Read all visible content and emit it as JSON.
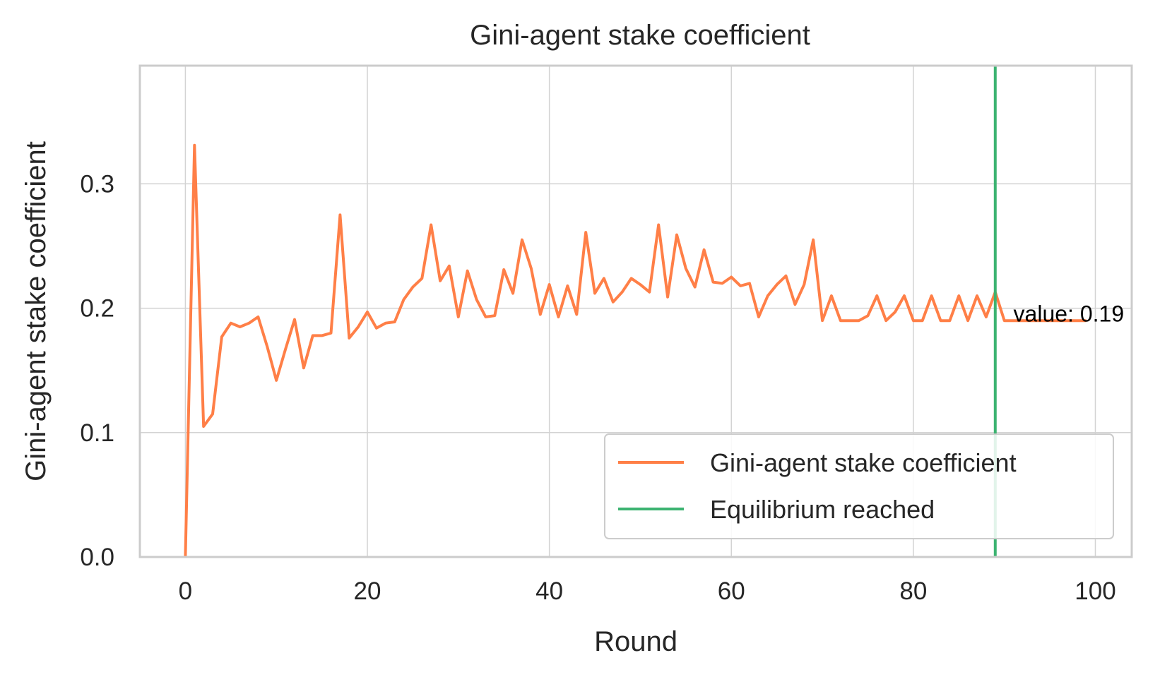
{
  "chart_data": {
    "type": "line",
    "title": "Gini-agent stake coefficient",
    "xlabel": "Round",
    "ylabel": "Gini-agent stake coefficient",
    "xlim": [
      -5,
      104
    ],
    "ylim": [
      0,
      0.395
    ],
    "xticks": [
      0,
      20,
      40,
      60,
      80,
      100
    ],
    "xtick_labels": [
      "0",
      "20",
      "40",
      "60",
      "80",
      "100"
    ],
    "yticks": [
      0.0,
      0.1,
      0.2,
      0.3
    ],
    "ytick_labels": [
      "0.0",
      "0.1",
      "0.2",
      "0.3"
    ],
    "grid": true,
    "legend_position": "lower right",
    "series": [
      {
        "name": "Gini-agent stake coefficient",
        "color": "#ff7f47",
        "x": [
          0,
          1,
          2,
          3,
          4,
          5,
          6,
          7,
          8,
          9,
          10,
          11,
          12,
          13,
          14,
          15,
          16,
          17,
          18,
          19,
          20,
          21,
          22,
          23,
          24,
          25,
          26,
          27,
          28,
          29,
          30,
          31,
          32,
          33,
          34,
          35,
          36,
          37,
          38,
          39,
          40,
          41,
          42,
          43,
          44,
          45,
          46,
          47,
          48,
          49,
          50,
          51,
          52,
          53,
          54,
          55,
          56,
          57,
          58,
          59,
          60,
          61,
          62,
          63,
          64,
          65,
          66,
          67,
          68,
          69,
          70,
          71,
          72,
          73,
          74,
          75,
          76,
          77,
          78,
          79,
          80,
          81,
          82,
          83,
          84,
          85,
          86,
          87,
          88,
          89,
          90,
          91,
          92,
          93,
          94,
          95,
          96,
          97,
          98,
          99
        ],
        "values": [
          0.0,
          0.331,
          0.105,
          0.115,
          0.177,
          0.188,
          0.185,
          0.188,
          0.193,
          0.169,
          0.142,
          0.167,
          0.191,
          0.152,
          0.178,
          0.178,
          0.18,
          0.275,
          0.176,
          0.185,
          0.197,
          0.184,
          0.188,
          0.189,
          0.207,
          0.217,
          0.224,
          0.267,
          0.222,
          0.234,
          0.193,
          0.23,
          0.207,
          0.193,
          0.194,
          0.231,
          0.212,
          0.255,
          0.232,
          0.195,
          0.219,
          0.193,
          0.218,
          0.195,
          0.261,
          0.212,
          0.224,
          0.205,
          0.213,
          0.224,
          0.219,
          0.213,
          0.267,
          0.209,
          0.259,
          0.232,
          0.217,
          0.247,
          0.221,
          0.22,
          0.225,
          0.218,
          0.22,
          0.193,
          0.21,
          0.219,
          0.226,
          0.203,
          0.219,
          0.255,
          0.19,
          0.21,
          0.19,
          0.19,
          0.19,
          0.194,
          0.21,
          0.19,
          0.197,
          0.21,
          0.19,
          0.19,
          0.21,
          0.19,
          0.19,
          0.21,
          0.19,
          0.21,
          0.193,
          0.213,
          0.19,
          0.19,
          0.19,
          0.19,
          0.19,
          0.19,
          0.19,
          0.19,
          0.19,
          0.19
        ]
      }
    ],
    "vlines": [
      {
        "name": "Equilibrium reached",
        "x": 89,
        "color": "#3cb371"
      }
    ],
    "annotation": {
      "text": "value: 0.19",
      "x": 91,
      "y": 0.195
    }
  }
}
